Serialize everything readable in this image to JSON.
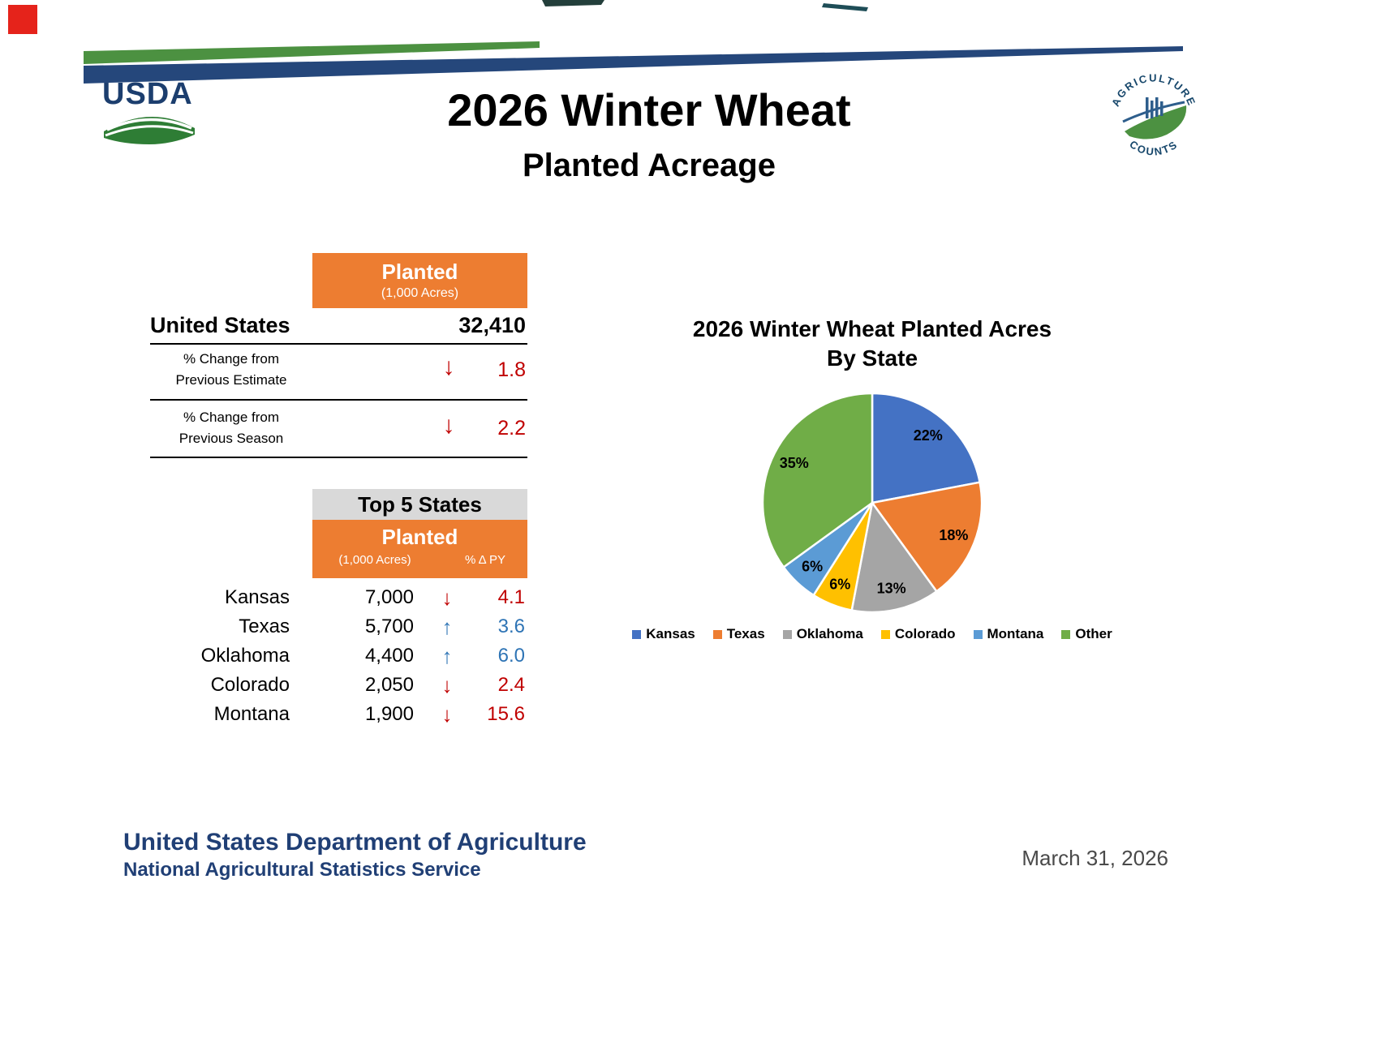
{
  "page": {
    "title": "2026 Winter Wheat",
    "subtitle": "Planted Acreage"
  },
  "logos": {
    "usda_text": "USDA",
    "agriculture_counts_top": "AGRICULTURE",
    "agriculture_counts_bottom": "COUNTS"
  },
  "us_summary": {
    "header_title": "Planted",
    "header_units": "(1,000 Acres)",
    "label": "United States",
    "value": "32,410",
    "changes": [
      {
        "label_line1": "% Change from",
        "label_line2": "Previous Estimate",
        "arrow": "↓",
        "direction": "down",
        "value": "1.8"
      },
      {
        "label_line1": "% Change from",
        "label_line2": "Previous Season",
        "arrow": "↓",
        "direction": "down",
        "value": "2.2"
      }
    ]
  },
  "top5": {
    "title": "Top 5 States",
    "header_title": "Planted",
    "header_units": "(1,000 Acres)",
    "header_pct": "% Δ PY",
    "rows": [
      {
        "state": "Kansas",
        "planted": "7,000",
        "arrow": "↓",
        "direction": "down",
        "pct": "4.1"
      },
      {
        "state": "Texas",
        "planted": "5,700",
        "arrow": "↑",
        "direction": "up",
        "pct": "3.6"
      },
      {
        "state": "Oklahoma",
        "planted": "4,400",
        "arrow": "↑",
        "direction": "up",
        "pct": "6.0"
      },
      {
        "state": "Colorado",
        "planted": "2,050",
        "arrow": "↓",
        "direction": "down",
        "pct": "2.4"
      },
      {
        "state": "Montana",
        "planted": "1,900",
        "arrow": "↓",
        "direction": "down",
        "pct": "15.6"
      }
    ]
  },
  "chart_data": {
    "type": "pie",
    "title": "2026 Winter Wheat Planted Acres By State",
    "title_line1": "2026 Winter Wheat Planted Acres",
    "title_line2": "By State",
    "labels": [
      "Kansas",
      "Texas",
      "Oklahoma",
      "Colorado",
      "Montana",
      "Other"
    ],
    "values": [
      22,
      18,
      13,
      6,
      6,
      35
    ],
    "unit": "%",
    "colors": [
      "#4472C4",
      "#ED7D31",
      "#A5A5A5",
      "#FFC000",
      "#5B9BD5",
      "#70AD47"
    ],
    "legend_position": "bottom",
    "start_angle": "12-oclock-clockwise"
  },
  "footer": {
    "org_line1": "United States Department of Agriculture",
    "org_line2": "National Agricultural Statistics Service",
    "date": "March 31, 2026"
  },
  "theme": {
    "accent_orange": "#ED7D31",
    "header_gray": "#D9D9D9",
    "down_red": "#C00000",
    "up_blue": "#2E74B5",
    "footer_blue": "#203F75",
    "date_gray": "#4A4A4A",
    "band_blue": "#25477B",
    "band_green": "#4C9141"
  }
}
